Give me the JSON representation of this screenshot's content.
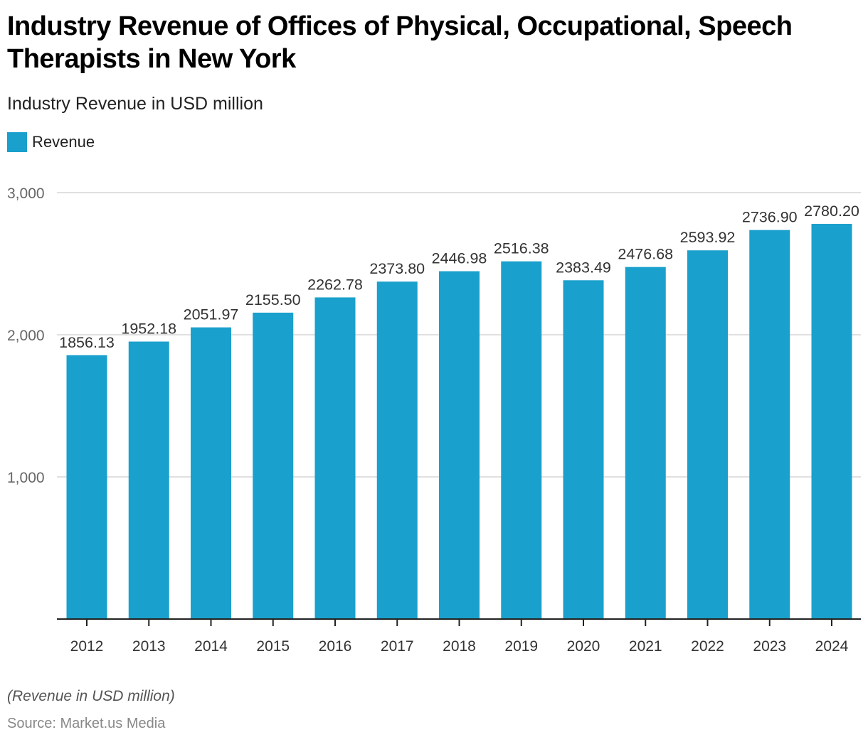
{
  "header": {
    "title": "Industry Revenue of Offices of Physical, Occupational, Speech Therapists in New York",
    "subtitle": "Industry Revenue in USD million"
  },
  "legend": {
    "label": "Revenue",
    "color": "#1aa0cc"
  },
  "footer": {
    "note": "(Revenue in USD million)",
    "source": "Source: Market.us Media"
  },
  "chart_data": {
    "type": "bar",
    "title": "Industry Revenue of Offices of Physical, Occupational, Speech Therapists in New York",
    "subtitle": "Industry Revenue in USD million",
    "xlabel": "",
    "ylabel": "",
    "categories": [
      "2012",
      "2013",
      "2014",
      "2015",
      "2016",
      "2017",
      "2018",
      "2019",
      "2020",
      "2021",
      "2022",
      "2023",
      "2024"
    ],
    "series": [
      {
        "name": "Revenue",
        "color": "#1aa0cc",
        "values": [
          1856.13,
          1952.18,
          2051.97,
          2155.5,
          2262.78,
          2373.8,
          2446.98,
          2516.38,
          2383.49,
          2476.68,
          2593.92,
          2736.9,
          2780.2
        ]
      }
    ],
    "data_labels": [
      "1856.13",
      "1952.18",
      "2051.97",
      "2155.50",
      "2262.78",
      "2373.80",
      "2446.98",
      "2516.38",
      "2383.49",
      "2476.68",
      "2593.92",
      "2736.90",
      "2780.20"
    ],
    "ylim": [
      0,
      3000
    ],
    "yticks": [
      1000,
      2000,
      3000
    ],
    "ytick_labels": [
      "1,000",
      "2,000",
      "3,000"
    ],
    "grid": true,
    "legend_position": "top-left"
  }
}
